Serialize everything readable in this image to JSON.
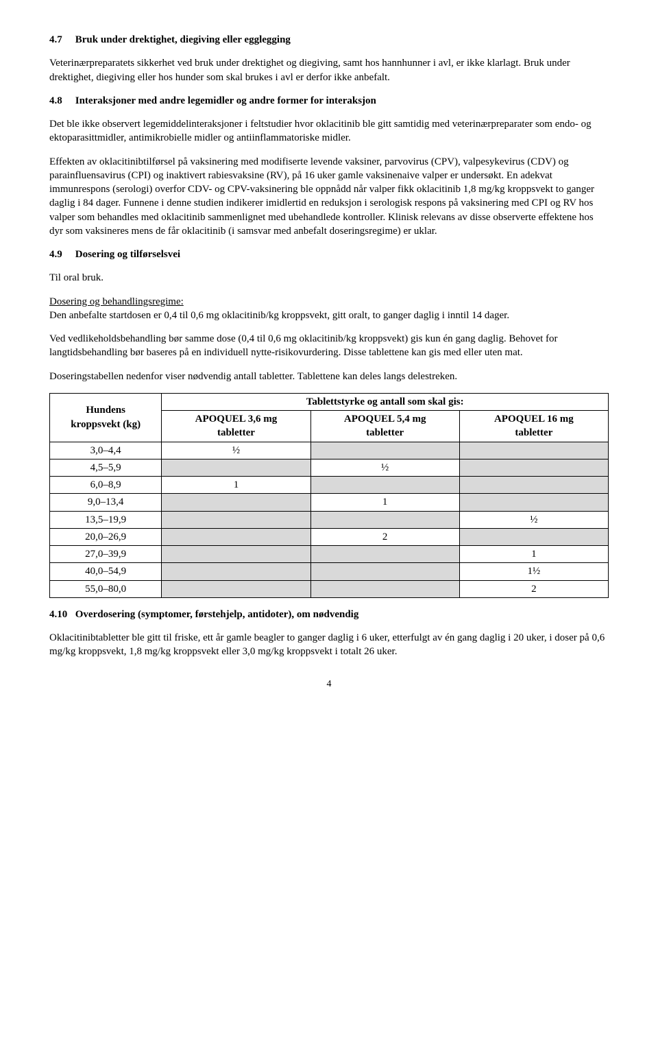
{
  "s47": {
    "heading_num": "4.7",
    "heading_text": "Bruk under drektighet, diegiving eller egglegging",
    "p1": "Veterinærpreparatets sikkerhet ved bruk under drektighet og diegiving, samt hos hannhunner i avl, er ikke klarlagt. Bruk under drektighet, diegiving eller hos hunder som skal brukes i avl er derfor ikke anbefalt."
  },
  "s48": {
    "heading_num": "4.8",
    "heading_text": "Interaksjoner med andre legemidler og andre former for interaksjon",
    "p1": "Det ble ikke observert legemiddelinteraksjoner i feltstudier hvor oklacitinib ble gitt samtidig med veterinærpreparater som endo- og ektoparasittmidler, antimikrobielle midler og antiinflammatoriske midler.",
    "p2": "Effekten av oklacitinibtilførsel på vaksinering med modifiserte levende vaksiner, parvovirus (CPV), valpesykevirus (CDV) og parainfluensavirus (CPI) og inaktivert rabiesvaksine (RV), på 16 uker gamle vaksinenaive valper er undersøkt. En adekvat immunrespons (serologi) overfor CDV- og CPV-vaksinering ble oppnådd når valper fikk oklacitinib 1,8 mg/kg kroppsvekt to ganger daglig i 84 dager. Funnene i denne studien indikerer imidlertid en reduksjon i serologisk respons på vaksinering med CPI og RV hos valper som behandles med oklacitinib sammenlignet med ubehandlede kontroller. Klinisk relevans av disse observerte effektene hos dyr som vaksineres mens de får oklacitinib (i samsvar med anbefalt doseringsregime) er uklar."
  },
  "s49": {
    "heading_num": "4.9",
    "heading_text": "Dosering og tilførselsvei",
    "p1": "Til oral bruk.",
    "p2_label": "Dosering og behandlingsregime:",
    "p2": "Den anbefalte startdosen er 0,4 til 0,6 mg oklacitinib/kg kroppsvekt, gitt oralt, to ganger daglig i inntil 14 dager.",
    "p3": "Ved vedlikeholdsbehandling bør samme dose (0,4 til 0,6 mg oklacitinib/kg kroppsvekt) gis kun én gang daglig. Behovet for langtidsbehandling bør baseres på en individuell nytte-risikovurdering. Disse tablettene kan gis med eller uten mat.",
    "p4": "Doseringstabellen nedenfor viser nødvendig antall tabletter. Tablettene kan deles langs delestreken."
  },
  "table": {
    "header_weight_l1": "Hundens",
    "header_weight_l2": "kroppsvekt (kg)",
    "header_span": "Tablettstyrke og antall som skal gis:",
    "col1_l1": "APOQUEL 3,6 mg",
    "col1_l2": "tabletter",
    "col2_l1": "APOQUEL 5,4 mg",
    "col2_l2": "tabletter",
    "col3_l1": "APOQUEL 16 mg",
    "col3_l2": "tabletter",
    "rows": [
      {
        "w": "3,0–4,4",
        "a": "½",
        "b": "",
        "c": ""
      },
      {
        "w": "4,5–5,9",
        "a": "",
        "b": "½",
        "c": ""
      },
      {
        "w": "6,0–8,9",
        "a": "1",
        "b": "",
        "c": ""
      },
      {
        "w": "9,0–13,4",
        "a": "",
        "b": "1",
        "c": ""
      },
      {
        "w": "13,5–19,9",
        "a": "",
        "b": "",
        "c": "½"
      },
      {
        "w": "20,0–26,9",
        "a": "",
        "b": "2",
        "c": ""
      },
      {
        "w": "27,0–39,9",
        "a": "",
        "b": "",
        "c": "1"
      },
      {
        "w": "40,0–54,9",
        "a": "",
        "b": "",
        "c": "1½"
      },
      {
        "w": "55,0–80,0",
        "a": "",
        "b": "",
        "c": "2"
      }
    ]
  },
  "s410": {
    "heading_num": "4.10",
    "heading_text": "Overdosering (symptomer, førstehjelp, antidoter), om nødvendig",
    "p1": "Oklacitinibtabletter ble gitt til friske, ett år gamle beagler to ganger daglig i 6 uker, etterfulgt av én gang daglig i 20 uker, i doser på 0,6 mg/kg kroppsvekt, 1,8 mg/kg kroppsvekt eller 3,0 mg/kg kroppsvekt i totalt 26 uker."
  },
  "page_number": "4"
}
